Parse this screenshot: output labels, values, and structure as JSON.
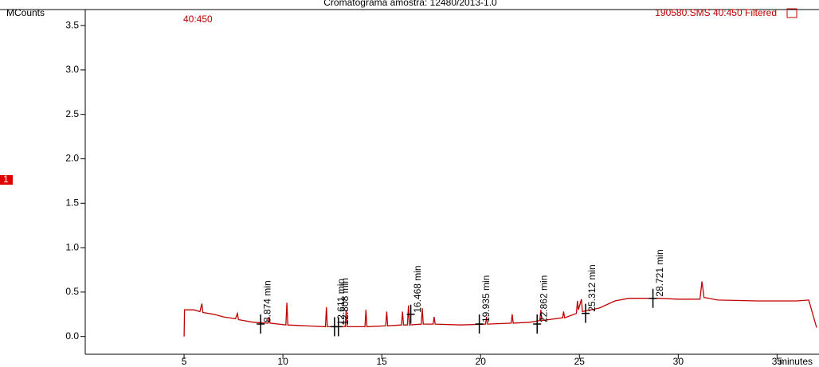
{
  "chart_data": {
    "type": "line",
    "title": "Cromatograma amostra: 12480/2013-1.0",
    "y_label": "MCounts",
    "x_label": "minutes",
    "trace_label": "40:450",
    "file_label": "190580.SMS 40:450 Filtered",
    "side_marker": "1",
    "xlim": [
      0,
      37
    ],
    "ylim": [
      -0.2,
      3.68
    ],
    "xticks": [
      5,
      10,
      15,
      20,
      25,
      30,
      35
    ],
    "yticks": [
      {
        "value": 0,
        "label": "0.0"
      },
      0.5,
      {
        "value": 1,
        "label": "1.0"
      },
      1.5,
      {
        "value": 2,
        "label": "2.0"
      },
      2.5,
      {
        "value": 3,
        "label": "3.0"
      },
      3.5
    ],
    "series": [
      {
        "name": "40:450",
        "color": "#c00000",
        "x": [
          5.0,
          5.02,
          5.5,
          5.8,
          5.9,
          5.95,
          6.5,
          7.0,
          7.6,
          7.7,
          7.75,
          8.5,
          9.25,
          9.3,
          9.35,
          10.15,
          10.2,
          10.25,
          12.15,
          12.2,
          12.25,
          13.15,
          13.2,
          13.25,
          14.15,
          14.2,
          14.25,
          15.2,
          15.25,
          15.3,
          16.0,
          16.05,
          16.1,
          16.3,
          16.35,
          16.4,
          17.0,
          17.05,
          17.1,
          17.6,
          17.65,
          17.7,
          19.0,
          20.25,
          20.3,
          20.35,
          21.55,
          21.6,
          21.65,
          22.5,
          23.0,
          23.05,
          23.1,
          24.15,
          24.2,
          24.25,
          24.85,
          24.9,
          24.95,
          25.1,
          25.15,
          26.0,
          26.8,
          27.5,
          29.0,
          30.0,
          31.1,
          31.2,
          31.3,
          32.0,
          34.0,
          36.0,
          36.6,
          37.0
        ],
        "values": [
          0.0,
          0.3,
          0.3,
          0.28,
          0.37,
          0.27,
          0.25,
          0.22,
          0.2,
          0.26,
          0.19,
          0.16,
          0.15,
          0.22,
          0.15,
          0.13,
          0.38,
          0.13,
          0.11,
          0.33,
          0.11,
          0.11,
          0.3,
          0.11,
          0.11,
          0.3,
          0.11,
          0.12,
          0.28,
          0.12,
          0.13,
          0.28,
          0.13,
          0.13,
          0.35,
          0.13,
          0.14,
          0.32,
          0.14,
          0.14,
          0.22,
          0.14,
          0.13,
          0.14,
          0.22,
          0.14,
          0.15,
          0.25,
          0.15,
          0.16,
          0.18,
          0.3,
          0.18,
          0.21,
          0.28,
          0.21,
          0.26,
          0.4,
          0.3,
          0.42,
          0.28,
          0.32,
          0.4,
          0.43,
          0.43,
          0.42,
          0.42,
          0.62,
          0.44,
          0.41,
          0.4,
          0.4,
          0.41,
          0.1
        ]
      }
    ],
    "peaks": {
      "x": [
        8.874,
        12.611,
        12.808,
        16.468,
        19.935,
        22.862,
        25.312,
        28.721
      ],
      "values": [
        0.14,
        0.11,
        0.11,
        0.25,
        0.14,
        0.14,
        0.26,
        0.43
      ],
      "labels": [
        "8.874 min",
        "12.611 min",
        "12.808 min",
        "16.468 min",
        "19.935 min",
        "22.862 min",
        "25.312 min",
        "28.721 min"
      ]
    }
  }
}
